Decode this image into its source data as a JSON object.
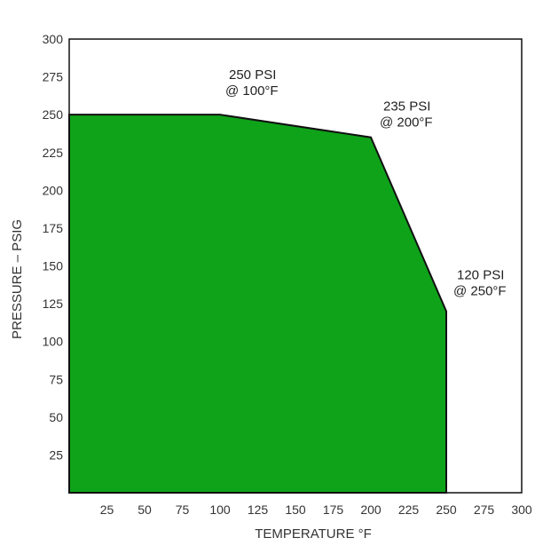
{
  "chart_data": {
    "type": "area",
    "title": "",
    "xlabel": "TEMPERATURE °F",
    "ylabel": "PRESSURE – PSIG",
    "xlim": [
      0,
      300
    ],
    "ylim": [
      0,
      300
    ],
    "x_ticks": [
      25,
      50,
      75,
      100,
      125,
      150,
      175,
      200,
      225,
      250,
      275,
      300
    ],
    "y_ticks": [
      25,
      50,
      75,
      100,
      125,
      150,
      175,
      200,
      225,
      250,
      275,
      300
    ],
    "grid": false,
    "fill_color": "#0fa31a",
    "points": [
      {
        "x": 0,
        "y": 250
      },
      {
        "x": 100,
        "y": 250
      },
      {
        "x": 200,
        "y": 235
      },
      {
        "x": 250,
        "y": 120
      },
      {
        "x": 250,
        "y": 0
      }
    ],
    "annotations": [
      {
        "line1": "250 PSI",
        "line2": "@ 100°F",
        "x": 100,
        "y": 250
      },
      {
        "line1": "235 PSI",
        "line2": "@ 200°F",
        "x": 200,
        "y": 235
      },
      {
        "line1": "120 PSI",
        "line2": "@ 250°F",
        "x": 250,
        "y": 120
      }
    ]
  }
}
